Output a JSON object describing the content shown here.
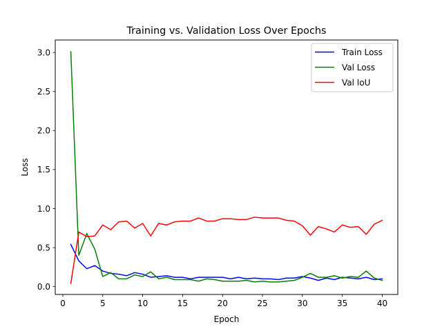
{
  "chart_data": {
    "type": "line",
    "title": "Training vs. Validation Loss Over Epochs",
    "xlabel": "Epoch",
    "ylabel": "Loss",
    "xlim": [
      -0.95,
      41.95
    ],
    "ylim": [
      -0.1,
      3.16
    ],
    "xticks": [
      0,
      5,
      10,
      15,
      20,
      25,
      30,
      35,
      40
    ],
    "yticks": [
      0.0,
      0.5,
      1.0,
      1.5,
      2.0,
      2.5,
      3.0
    ],
    "grid": false,
    "legend_position": "top-right",
    "x": [
      1,
      2,
      3,
      4,
      5,
      6,
      7,
      8,
      9,
      10,
      11,
      12,
      13,
      14,
      15,
      16,
      17,
      18,
      19,
      20,
      21,
      22,
      23,
      24,
      25,
      26,
      27,
      28,
      29,
      30,
      31,
      32,
      33,
      34,
      35,
      36,
      37,
      38,
      39,
      40
    ],
    "series": [
      {
        "name": "Train Loss",
        "color": "#0000ff",
        "values": [
          0.54,
          0.33,
          0.23,
          0.27,
          0.2,
          0.17,
          0.16,
          0.14,
          0.18,
          0.16,
          0.12,
          0.13,
          0.14,
          0.12,
          0.12,
          0.1,
          0.12,
          0.12,
          0.12,
          0.12,
          0.1,
          0.12,
          0.1,
          0.11,
          0.1,
          0.1,
          0.09,
          0.11,
          0.11,
          0.13,
          0.11,
          0.08,
          0.11,
          0.09,
          0.12,
          0.11,
          0.1,
          0.12,
          0.09,
          0.1
        ]
      },
      {
        "name": "Val Loss",
        "color": "#008000",
        "values": [
          3.01,
          0.4,
          0.68,
          0.48,
          0.13,
          0.18,
          0.1,
          0.1,
          0.15,
          0.13,
          0.19,
          0.1,
          0.12,
          0.09,
          0.09,
          0.09,
          0.07,
          0.1,
          0.09,
          0.07,
          0.07,
          0.07,
          0.08,
          0.06,
          0.07,
          0.06,
          0.06,
          0.07,
          0.08,
          0.12,
          0.17,
          0.12,
          0.12,
          0.14,
          0.11,
          0.13,
          0.12,
          0.2,
          0.11,
          0.08
        ]
      },
      {
        "name": "Val IoU",
        "color": "#ff0000",
        "values": [
          0.04,
          0.7,
          0.64,
          0.65,
          0.79,
          0.73,
          0.83,
          0.84,
          0.75,
          0.81,
          0.65,
          0.81,
          0.79,
          0.83,
          0.84,
          0.84,
          0.88,
          0.84,
          0.84,
          0.87,
          0.87,
          0.86,
          0.86,
          0.89,
          0.88,
          0.88,
          0.88,
          0.85,
          0.84,
          0.78,
          0.66,
          0.77,
          0.74,
          0.7,
          0.79,
          0.76,
          0.77,
          0.67,
          0.8,
          0.85
        ]
      }
    ]
  }
}
